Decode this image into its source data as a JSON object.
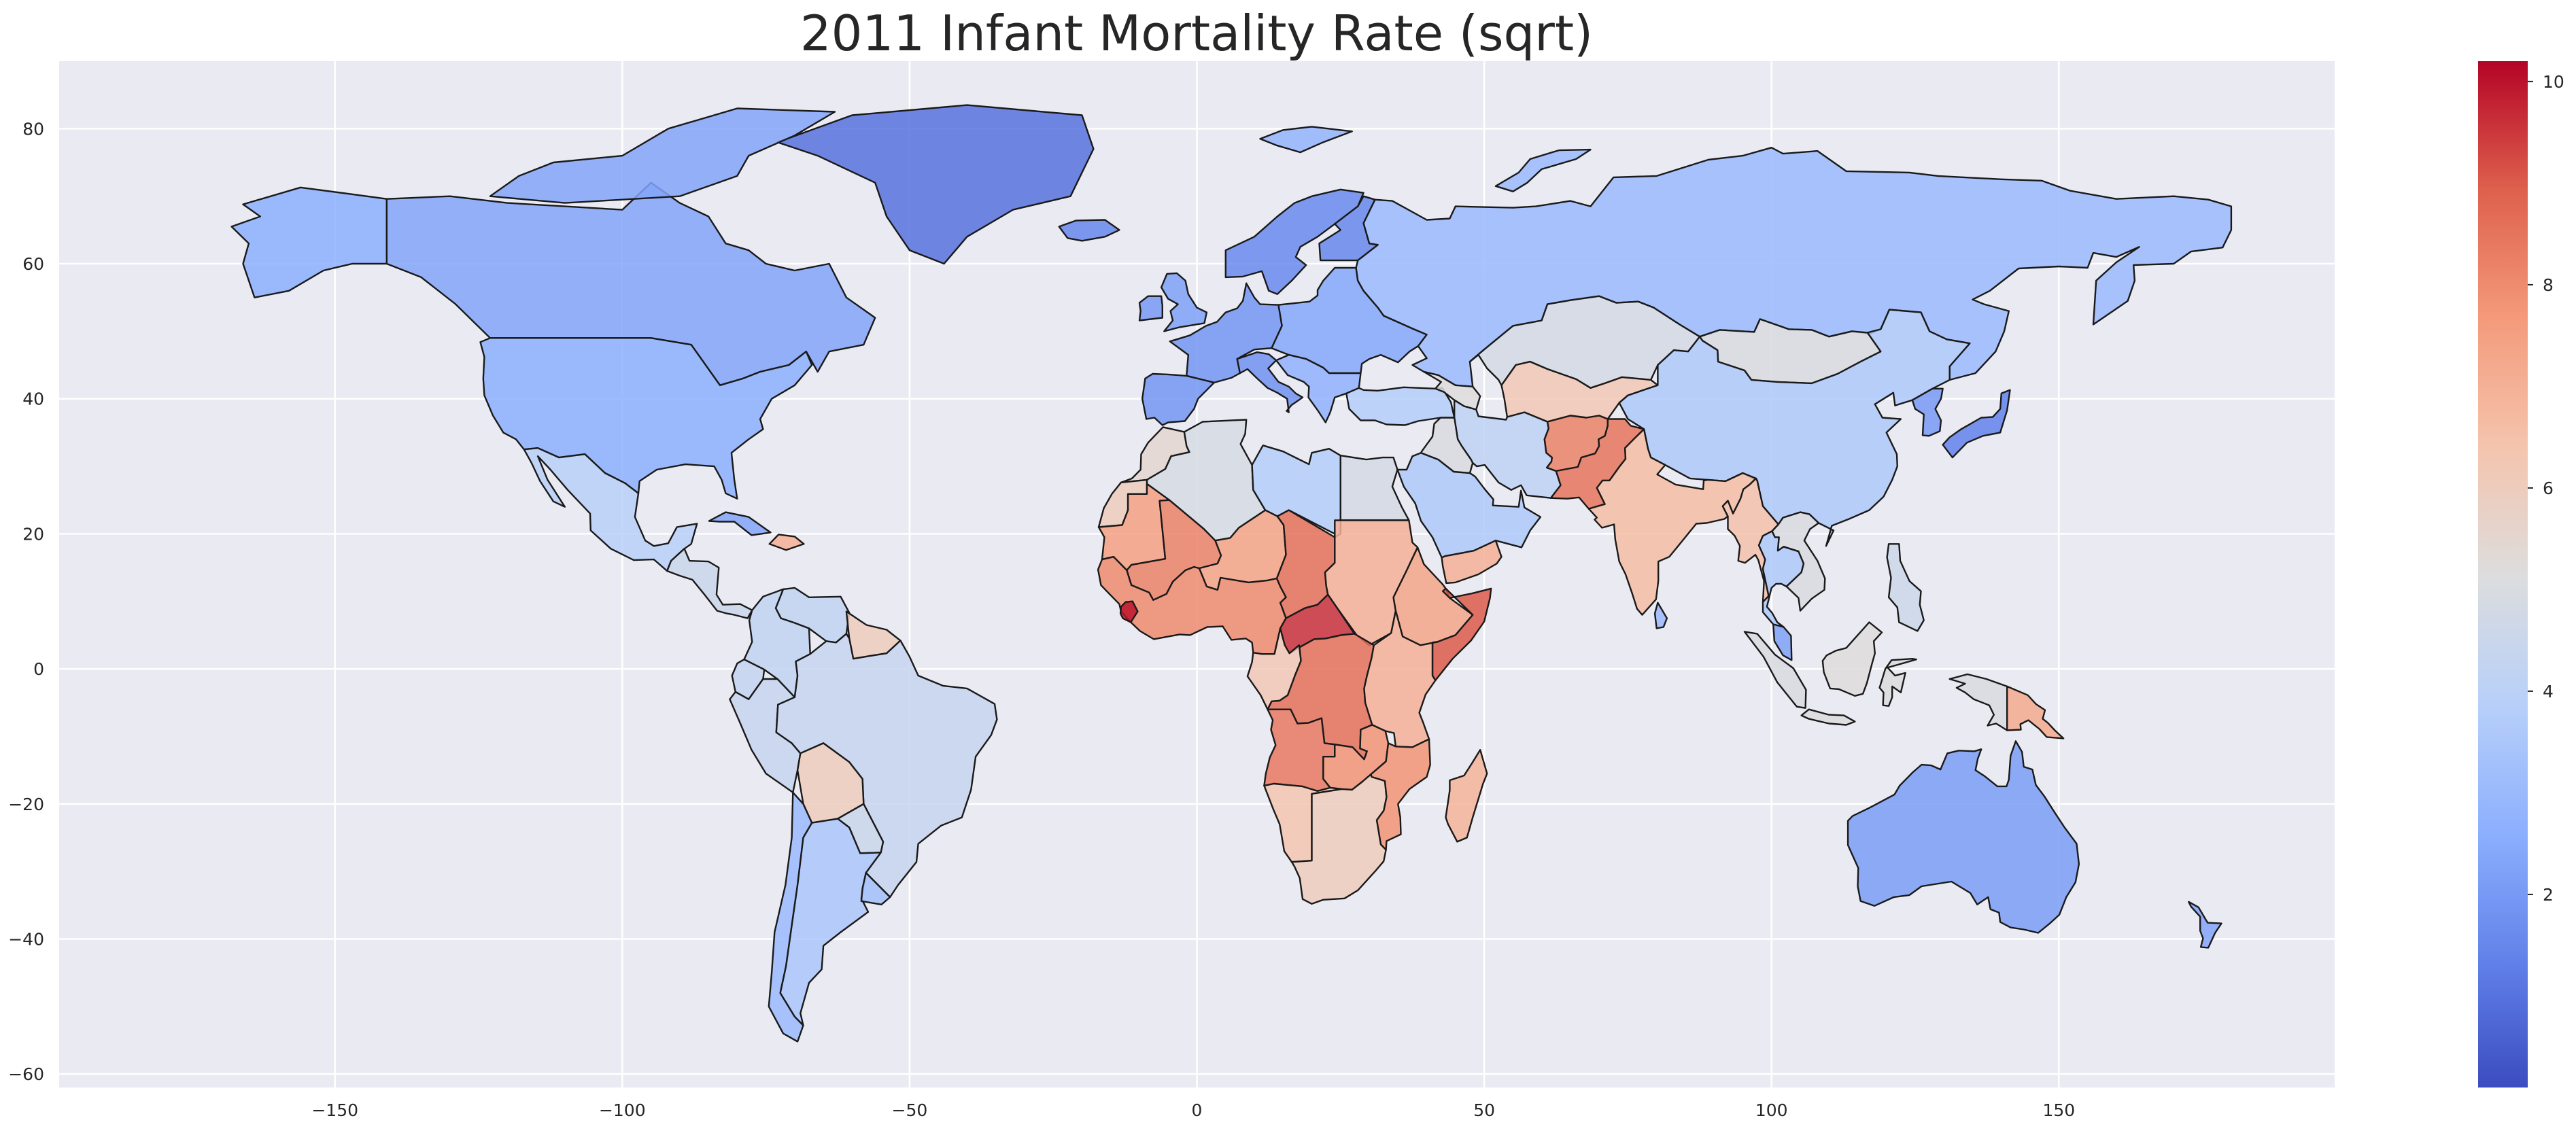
{
  "chart_data": {
    "type": "choropleth",
    "title": "2011 Infant Mortality Rate (sqrt)",
    "xlabel": "",
    "ylabel": "",
    "xlim": [
      -198,
      198
    ],
    "ylim": [
      -62,
      90
    ],
    "x_ticks": [
      -150,
      -100,
      -50,
      0,
      50,
      100,
      150
    ],
    "y_ticks": [
      -60,
      -40,
      -20,
      0,
      20,
      40,
      60,
      80
    ],
    "grid": true,
    "colormap": "coolwarm",
    "colorbar": {
      "position": "right",
      "range": [
        0.1,
        10.2
      ],
      "ticks": [
        2,
        4,
        6,
        8,
        10
      ]
    },
    "colors": {
      "axes_background": "#eaeaf2",
      "grid": "#ffffff",
      "border": "#1a1a1a"
    },
    "regions": [
      {
        "name": "Greenland",
        "value": 1.0
      },
      {
        "name": "Canada",
        "value": 2.3
      },
      {
        "name": "Alaska",
        "value": 2.6
      },
      {
        "name": "United States",
        "value": 2.6
      },
      {
        "name": "Mexico",
        "value": 3.9
      },
      {
        "name": "Central America",
        "value": 4.5
      },
      {
        "name": "Cuba",
        "value": 2.3
      },
      {
        "name": "Haiti",
        "value": 7.0
      },
      {
        "name": "Venezuela",
        "value": 4.2
      },
      {
        "name": "Guyana",
        "value": 6.0
      },
      {
        "name": "Colombia",
        "value": 4.2
      },
      {
        "name": "Ecuador",
        "value": 4.3
      },
      {
        "name": "Peru",
        "value": 4.4
      },
      {
        "name": "Brazil",
        "value": 4.4
      },
      {
        "name": "Bolivia",
        "value": 6.0
      },
      {
        "name": "Paraguay",
        "value": 4.5
      },
      {
        "name": "Chile",
        "value": 3.0
      },
      {
        "name": "Argentina",
        "value": 3.5
      },
      {
        "name": "Uruguay",
        "value": 3.2
      },
      {
        "name": "Iceland",
        "value": 1.5
      },
      {
        "name": "United Kingdom",
        "value": 2.2
      },
      {
        "name": "Ireland",
        "value": 2.0
      },
      {
        "name": "Scandinavia",
        "value": 1.6
      },
      {
        "name": "Finland",
        "value": 1.5
      },
      {
        "name": "Western Europe",
        "value": 1.9
      },
      {
        "name": "Eastern Europe",
        "value": 2.4
      },
      {
        "name": "Iberia",
        "value": 1.9
      },
      {
        "name": "Italy",
        "value": 1.8
      },
      {
        "name": "Balkans",
        "value": 2.7
      },
      {
        "name": "Turkey",
        "value": 3.8
      },
      {
        "name": "Russia",
        "value": 3.0
      },
      {
        "name": "Kazakhstan",
        "value": 4.8
      },
      {
        "name": "Mongolia",
        "value": 5.0
      },
      {
        "name": "Central Asia",
        "value": 6.2
      },
      {
        "name": "Caucasus",
        "value": 5.2
      },
      {
        "name": "China",
        "value": 3.6
      },
      {
        "name": "Korea",
        "value": 2.0
      },
      {
        "name": "Japan",
        "value": 1.4
      },
      {
        "name": "Morocco",
        "value": 5.5
      },
      {
        "name": "Algeria",
        "value": 4.9
      },
      {
        "name": "Libya",
        "value": 3.8
      },
      {
        "name": "Egypt",
        "value": 4.8
      },
      {
        "name": "Western Sahara",
        "value": 6.0
      },
      {
        "name": "Mauritania",
        "value": 7.5
      },
      {
        "name": "Mali",
        "value": 8.2
      },
      {
        "name": "Niger",
        "value": 7.4
      },
      {
        "name": "Chad",
        "value": 8.6
      },
      {
        "name": "Sudan",
        "value": 7.0
      },
      {
        "name": "Ethiopia",
        "value": 7.3
      },
      {
        "name": "Somalia",
        "value": 9.0
      },
      {
        "name": "West Africa",
        "value": 8.0
      },
      {
        "name": "Sierra Leone",
        "value": 10.0
      },
      {
        "name": "Central African Republic",
        "value": 9.6
      },
      {
        "name": "DR Congo",
        "value": 8.6
      },
      {
        "name": "Congo",
        "value": 6.2
      },
      {
        "name": "East Africa",
        "value": 7.0
      },
      {
        "name": "Angola",
        "value": 8.4
      },
      {
        "name": "Zambia",
        "value": 7.8
      },
      {
        "name": "Mozambique",
        "value": 7.8
      },
      {
        "name": "Namibia",
        "value": 6.3
      },
      {
        "name": "South Africa",
        "value": 6.0
      },
      {
        "name": "Madagascar",
        "value": 6.9
      },
      {
        "name": "Saudi Arabia",
        "value": 3.6
      },
      {
        "name": "Yemen",
        "value": 7.0
      },
      {
        "name": "Iran",
        "value": 4.1
      },
      {
        "name": "Iraq",
        "value": 5.0
      },
      {
        "name": "Afghanistan",
        "value": 8.2
      },
      {
        "name": "Pakistan",
        "value": 8.5
      },
      {
        "name": "India",
        "value": 6.6
      },
      {
        "name": "Sri Lanka",
        "value": 3.0
      },
      {
        "name": "Myanmar",
        "value": 6.5
      },
      {
        "name": "Thailand",
        "value": 3.6
      },
      {
        "name": "Indochina",
        "value": 5.0
      },
      {
        "name": "Malay Peninsula",
        "value": 2.2
      },
      {
        "name": "Philippines",
        "value": 4.6
      },
      {
        "name": "Sumatra",
        "value": 5.0
      },
      {
        "name": "Java",
        "value": 5.1
      },
      {
        "name": "Borneo",
        "value": 5.2
      },
      {
        "name": "Sulawesi",
        "value": 5.1
      },
      {
        "name": "New Guinea",
        "value": 5.0
      },
      {
        "name": "Papua New Guinea",
        "value": 7.2
      },
      {
        "name": "Australia",
        "value": 2.1
      },
      {
        "name": "New Zealand",
        "value": 2.3
      },
      {
        "name": "Svalbard",
        "value": 2.8
      },
      {
        "name": "Novaya Zemlya",
        "value": 3.0
      },
      {
        "name": "Arctic Archipelago",
        "value": 2.3
      }
    ]
  }
}
